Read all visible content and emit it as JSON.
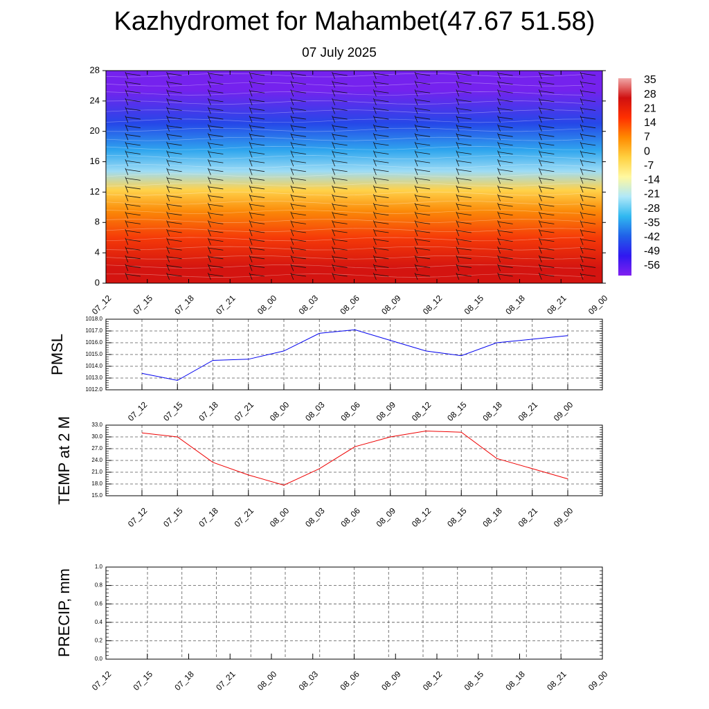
{
  "header": {
    "title": "Kazhydromet for Mahambet(47.67 51.58)",
    "subtitle": "07 July 2025"
  },
  "chart_data": [
    {
      "type": "heatmap",
      "name": "vertical-cross-section",
      "x_ticks": [
        "07_12",
        "07_15",
        "07_18",
        "07_21",
        "08_00",
        "08_03",
        "08_06",
        "08_09",
        "08_12",
        "08_15",
        "08_18",
        "08_21",
        "09_00"
      ],
      "y_ticks": [
        "0",
        "4",
        "8",
        "12",
        "16",
        "20",
        "24",
        "28"
      ],
      "ylim": [
        0,
        28
      ],
      "colorbar": {
        "labels": [
          "35",
          "28",
          "21",
          "14",
          "7",
          "0",
          "-7",
          "-14",
          "-21",
          "-28",
          "-35",
          "-42",
          "-49",
          "-56"
        ],
        "colors_top_to_bottom": [
          "#f0a8a8",
          "#d01010",
          "#ff3000",
          "#ff8a00",
          "#ffd040",
          "#fff8a0",
          "#b0e8f8",
          "#30b8f0",
          "#2060e8",
          "#3018f0",
          "#8020f0"
        ]
      },
      "bands": [
        {
          "from": 0,
          "to": 4,
          "color": "#d41410"
        },
        {
          "from": 4,
          "to": 8,
          "color": "#f53a08"
        },
        {
          "from": 8,
          "to": 11,
          "color": "#fb8a08"
        },
        {
          "from": 11,
          "to": 13.5,
          "color": "#ffd24a"
        },
        {
          "from": 13.5,
          "to": 16,
          "color": "#9edcf5"
        },
        {
          "from": 16,
          "to": 19,
          "color": "#2fa6ee"
        },
        {
          "from": 19,
          "to": 23,
          "color": "#2548e8"
        },
        {
          "from": 23,
          "to": 28,
          "color": "#7522ee"
        }
      ]
    },
    {
      "type": "line",
      "name": "pmsl",
      "ylabel": "PMSL",
      "x": [
        "07_12",
        "07_15",
        "07_18",
        "07_21",
        "08_00",
        "08_03",
        "08_06",
        "08_09",
        "08_12",
        "08_15",
        "08_18",
        "08_21",
        "09_00"
      ],
      "values": [
        1013.4,
        1012.8,
        1014.5,
        1014.6,
        1015.3,
        1016.8,
        1017.1,
        1016.2,
        1015.3,
        1014.9,
        1016.0,
        1016.3,
        1016.6
      ],
      "ylim": [
        1012.0,
        1018.0
      ],
      "y_ticks": [
        "1012.0",
        "1013.0",
        "1014.0",
        "1015.0",
        "1016.0",
        "1017.0",
        "1018.0"
      ],
      "color": "#0000ee"
    },
    {
      "type": "line",
      "name": "temp-2m",
      "ylabel": "TEMP at 2 M",
      "x": [
        "07_12",
        "07_15",
        "07_18",
        "07_21",
        "08_00",
        "08_03",
        "08_06",
        "08_09",
        "08_12",
        "08_15",
        "08_18",
        "08_21",
        "09_00"
      ],
      "values": [
        31.0,
        30.0,
        23.5,
        20.3,
        17.7,
        21.9,
        27.5,
        30.0,
        31.5,
        31.2,
        24.5,
        21.9,
        19.3
      ],
      "ylim": [
        15.0,
        33.0
      ],
      "y_ticks": [
        "15.0",
        "18.0",
        "21.0",
        "24.0",
        "27.0",
        "30.0",
        "33.0"
      ],
      "color": "#ee0000"
    },
    {
      "type": "line",
      "name": "precip",
      "ylabel": "PRECIP, mm",
      "x": [
        "07_12",
        "07_15",
        "07_18",
        "07_21",
        "08_00",
        "08_03",
        "08_06",
        "08_09",
        "08_12",
        "08_15",
        "08_18",
        "08_21",
        "09_00"
      ],
      "values": [
        0,
        0,
        0,
        0,
        0,
        0,
        0,
        0,
        0,
        0,
        0,
        0,
        0
      ],
      "ylim": [
        0.0,
        1.0
      ],
      "y_ticks": [
        "0.0",
        "0.2",
        "0.4",
        "0.6",
        "0.8",
        "1.0"
      ],
      "color": "#00aa00"
    }
  ]
}
